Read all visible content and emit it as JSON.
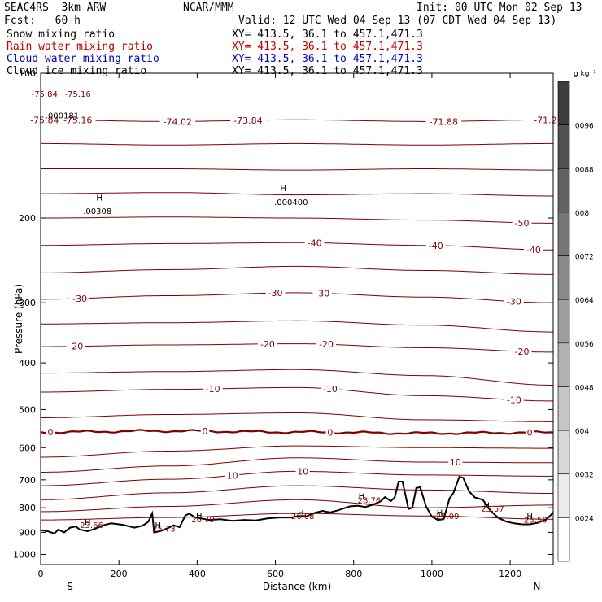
{
  "header": {
    "model": "SEAC4RS  3km ARW",
    "org": "NCAR/MMM",
    "init": "Init: 00 UTC Mon 02 Sep 13",
    "fcst": "Fcst:   60 h",
    "valid": "Valid: 12 UTC Wed 04 Sep 13 (07 CDT Wed 04 Sep 13)",
    "fields": [
      {
        "name": "Snow mixing ratio",
        "xy": "XY= 413.5, 36.1 to 457.1,471.3",
        "color": "#000000"
      },
      {
        "name": "Rain water mixing ratio",
        "xy": "XY= 413.5, 36.1 to 457.1,471.3",
        "color": "#c00000"
      },
      {
        "name": "Cloud water mixing ratio",
        "xy": "XY= 413.5, 36.1 to 457.1,471.3",
        "color": "#0000c0"
      },
      {
        "name": "Cloud ice mixing ratio",
        "xy": "XY= 413.5, 36.1 to 457.1,471.3",
        "color": "#000000"
      }
    ]
  },
  "colorbar": {
    "units": "g kg⁻¹",
    "labels": [
      ".0096",
      ".0088",
      ".008",
      ".0072",
      ".0064",
      ".0056",
      ".0048",
      ".004",
      ".0032",
      ".0024"
    ]
  },
  "chart_data": {
    "type": "contour",
    "xlabel": "Distance (km)",
    "ylabel": "Pressure (hPa)",
    "xlim": [
      0,
      1310
    ],
    "ylim": [
      1050,
      100
    ],
    "y_log": true,
    "xticks": [
      0,
      200,
      400,
      600,
      800,
      1000,
      1200
    ],
    "yticks": [
      200,
      300,
      400,
      500,
      600,
      700,
      800,
      900,
      1000
    ],
    "ytick_top_label": "100",
    "xtick_left_text": "S",
    "xtick_right_text": "N",
    "contour_color": "#800000",
    "isotherms": [
      {
        "p": [
          125,
          126,
          125,
          126,
          125
        ],
        "labels": [
          {
            "x": 10,
            "text": "-75.84"
          },
          {
            "x": 95,
            "text": "-75.16"
          },
          {
            "x": 350,
            "text": "-74.02"
          },
          {
            "x": 530,
            "text": "-73.84"
          },
          {
            "x": 1030,
            "text": "-71.88"
          },
          {
            "x": 1290,
            "text": "-71.2"
          }
        ]
      },
      {
        "p": [
          140,
          141,
          140,
          141,
          140
        ]
      },
      {
        "p": [
          158,
          158,
          159,
          158,
          159
        ]
      },
      {
        "p": [
          178,
          177,
          179,
          178,
          180
        ]
      },
      {
        "p": [
          200,
          199,
          200,
          202,
          205
        ],
        "labels": [
          {
            "x": 1230,
            "text": "-50"
          }
        ]
      },
      {
        "p": [
          228,
          226,
          225,
          228,
          233
        ],
        "labels": [
          {
            "x": 700,
            "text": "-40"
          },
          {
            "x": 1010,
            "text": "-40"
          },
          {
            "x": 1260,
            "text": "-40"
          }
        ]
      },
      {
        "p": [
          260,
          256,
          252,
          257,
          262
        ]
      },
      {
        "p": [
          295,
          290,
          286,
          292,
          300
        ],
        "labels": [
          {
            "x": 100,
            "text": "-30"
          },
          {
            "x": 600,
            "text": "-30"
          },
          {
            "x": 720,
            "text": "-30"
          },
          {
            "x": 1210,
            "text": "-30"
          }
        ]
      },
      {
        "p": [
          332,
          330,
          327,
          334,
          345
        ]
      },
      {
        "p": [
          370,
          367,
          365,
          372,
          380
        ],
        "labels": [
          {
            "x": 90,
            "text": "-20"
          },
          {
            "x": 580,
            "text": "-20"
          },
          {
            "x": 730,
            "text": "-20"
          },
          {
            "x": 1230,
            "text": "-20"
          }
        ]
      },
      {
        "p": [
          420,
          417,
          413,
          425,
          445
        ]
      },
      {
        "p": [
          460,
          454,
          450,
          468,
          480
        ],
        "labels": [
          {
            "x": 440,
            "text": "-10"
          },
          {
            "x": 740,
            "text": "-10"
          },
          {
            "x": 1210,
            "text": "-10"
          }
        ]
      },
      {
        "p": [
          520,
          512,
          508,
          525,
          530
        ]
      },
      {
        "p": [
          557,
          554,
          557,
          560,
          558
        ],
        "bold": true,
        "labels": [
          {
            "x": 25,
            "text": "0"
          },
          {
            "x": 420,
            "text": "0"
          },
          {
            "x": 740,
            "text": "0"
          },
          {
            "x": 1250,
            "text": "0"
          }
        ]
      },
      {
        "p": [
          628,
          610,
          595,
          600,
          602
        ]
      },
      {
        "p": [
          675,
          655,
          630,
          643,
          645
        ],
        "labels": [
          {
            "x": 1060,
            "text": "10"
          }
        ]
      },
      {
        "p": [
          720,
          698,
          672,
          684,
          688
        ],
        "labels": [
          {
            "x": 490,
            "text": "10"
          },
          {
            "x": 670,
            "text": "10"
          }
        ]
      },
      {
        "p": [
          770,
          745,
          720,
          735,
          747
        ]
      },
      {
        "p": [
          815,
          795,
          770,
          800,
          790
        ]
      },
      {
        "p": [
          848,
          838,
          822,
          832,
          845
        ]
      }
    ],
    "terrain_surface": [
      [
        0,
        890
      ],
      [
        20,
        896
      ],
      [
        35,
        905
      ],
      [
        45,
        888
      ],
      [
        60,
        900
      ],
      [
        75,
        880
      ],
      [
        90,
        875
      ],
      [
        100,
        888
      ],
      [
        120,
        895
      ],
      [
        140,
        884
      ],
      [
        160,
        870
      ],
      [
        180,
        862
      ],
      [
        210,
        868
      ],
      [
        240,
        880
      ],
      [
        260,
        872
      ],
      [
        275,
        856
      ],
      [
        285,
        822
      ],
      [
        290,
        900
      ],
      [
        305,
        895
      ],
      [
        325,
        882
      ],
      [
        340,
        870
      ],
      [
        355,
        878
      ],
      [
        370,
        830
      ],
      [
        380,
        823
      ],
      [
        395,
        838
      ],
      [
        410,
        842
      ],
      [
        430,
        848
      ],
      [
        460,
        845
      ],
      [
        490,
        852
      ],
      [
        520,
        848
      ],
      [
        550,
        850
      ],
      [
        580,
        842
      ],
      [
        610,
        838
      ],
      [
        640,
        838
      ],
      [
        660,
        832
      ],
      [
        680,
        833
      ],
      [
        700,
        820
      ],
      [
        720,
        812
      ],
      [
        740,
        818
      ],
      [
        760,
        810
      ],
      [
        790,
        795
      ],
      [
        810,
        792
      ],
      [
        830,
        797
      ],
      [
        850,
        788
      ],
      [
        870,
        775
      ],
      [
        880,
        760
      ],
      [
        895,
        775
      ],
      [
        905,
        762
      ],
      [
        915,
        706
      ],
      [
        925,
        706
      ],
      [
        940,
        805
      ],
      [
        950,
        800
      ],
      [
        960,
        728
      ],
      [
        970,
        725
      ],
      [
        985,
        795
      ],
      [
        1000,
        835
      ],
      [
        1015,
        848
      ],
      [
        1030,
        845
      ],
      [
        1045,
        765
      ],
      [
        1055,
        745
      ],
      [
        1070,
        690
      ],
      [
        1080,
        693
      ],
      [
        1095,
        740
      ],
      [
        1110,
        762
      ],
      [
        1130,
        770
      ],
      [
        1150,
        812
      ],
      [
        1170,
        840
      ],
      [
        1190,
        855
      ],
      [
        1210,
        862
      ],
      [
        1230,
        866
      ],
      [
        1250,
        866
      ],
      [
        1270,
        860
      ],
      [
        1290,
        848
      ],
      [
        1300,
        835
      ],
      [
        1310,
        818
      ]
    ],
    "annotations": [
      {
        "x": 10,
        "p": 112,
        "text": "-75.84"
      },
      {
        "x": 95,
        "p": 112,
        "text": "-75.16"
      },
      {
        "x": 55,
        "p": 124,
        "text": ".000181"
      },
      {
        "x": 145,
        "p": 196,
        "text": ".00308"
      },
      {
        "x": 150,
        "p": 184,
        "text": "H"
      },
      {
        "x": 640,
        "p": 188,
        "text": ".000400"
      },
      {
        "x": 620,
        "p": 176,
        "text": "H"
      },
      {
        "x": 130,
        "p": 881,
        "text": "23.66"
      },
      {
        "x": 120,
        "p": 868,
        "text": "H"
      },
      {
        "x": 315,
        "p": 896,
        "text": "25.73"
      },
      {
        "x": 300,
        "p": 881,
        "text": "H"
      },
      {
        "x": 415,
        "p": 857,
        "text": "26.79"
      },
      {
        "x": 405,
        "p": 843,
        "text": "H"
      },
      {
        "x": 670,
        "p": 845,
        "text": "26.08"
      },
      {
        "x": 665,
        "p": 832,
        "text": "H"
      },
      {
        "x": 840,
        "p": 782,
        "text": "28.76"
      },
      {
        "x": 820,
        "p": 768,
        "text": "H"
      },
      {
        "x": 1040,
        "p": 844,
        "text": "25.09"
      },
      {
        "x": 1020,
        "p": 830,
        "text": "H"
      },
      {
        "x": 1155,
        "p": 815,
        "text": "25.57"
      },
      {
        "x": 1140,
        "p": 801,
        "text": "H"
      },
      {
        "x": 1265,
        "p": 859,
        "text": "25.50"
      },
      {
        "x": 1250,
        "p": 845,
        "text": "H"
      }
    ]
  }
}
